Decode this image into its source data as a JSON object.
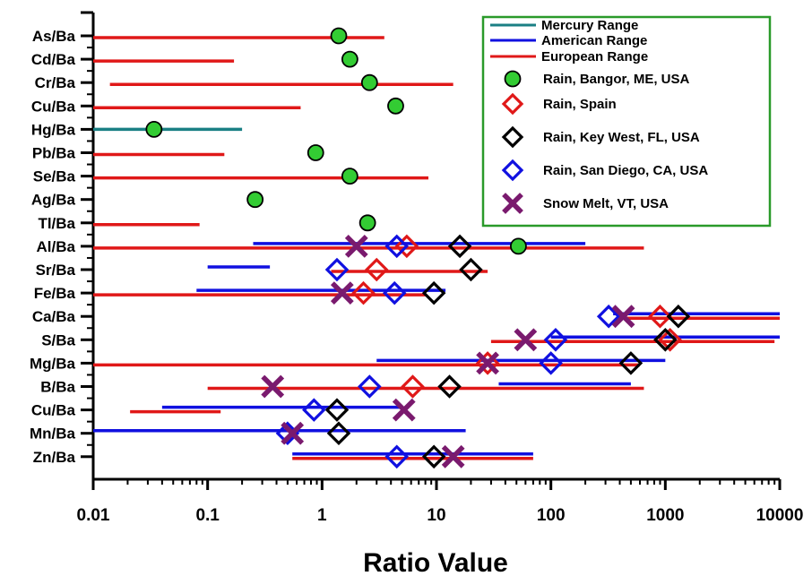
{
  "chart_data": {
    "type": "scatter",
    "xlabel": "Ratio Value",
    "x_scale": "log",
    "xlim": [
      0.01,
      10000
    ],
    "x_ticks": [
      "0.01",
      "0.1",
      "1",
      "10",
      "100",
      "1000",
      "10000"
    ],
    "x_tick_values": [
      0.01,
      0.1,
      1,
      10,
      100,
      1000,
      10000
    ],
    "categories": [
      "As/Ba",
      "Cd/Ba",
      "Cr/Ba",
      "Cu/Ba",
      "Hg/Ba",
      "Pb/Ba",
      "Se/Ba",
      "Ag/Ba",
      "Tl/Ba",
      "Al/Ba",
      "Sr/Ba",
      "Fe/Ba",
      "Ca/Ba",
      "S/Ba",
      "Mg/Ba",
      "B/Ba",
      "Cu/Ba",
      "Mn/Ba",
      "Zn/Ba"
    ],
    "legend_position": "top-right",
    "ranges": [
      {
        "name": "Mercury Range",
        "color": "#1a7f84",
        "segments": [
          {
            "category": 4,
            "x": [
              0.01,
              0.2
            ]
          }
        ]
      },
      {
        "name": "American Range",
        "color": "#1010e0",
        "segments": [
          {
            "category": 9,
            "x": [
              0.25,
              200
            ]
          },
          {
            "category": 10,
            "x": [
              0.1,
              0.35
            ]
          },
          {
            "category": 11,
            "x": [
              0.08,
              12
            ]
          },
          {
            "category": 12,
            "x": [
              350,
              10000
            ]
          },
          {
            "category": 13,
            "x": [
              100,
              10000
            ]
          },
          {
            "category": 14,
            "x": [
              3,
              1000
            ]
          },
          {
            "category": 15,
            "x": [
              35,
              500
            ]
          },
          {
            "category": 16,
            "x": [
              0.04,
              5
            ]
          },
          {
            "category": 17,
            "x": [
              0.01,
              18
            ]
          },
          {
            "category": 18,
            "x": [
              0.55,
              70
            ]
          }
        ]
      },
      {
        "name": "European Range",
        "color": "#e01818",
        "segments": [
          {
            "category": 0,
            "x": [
              0.01,
              3.5
            ]
          },
          {
            "category": 1,
            "x": [
              0.01,
              0.17
            ]
          },
          {
            "category": 2,
            "x": [
              0.014,
              14
            ]
          },
          {
            "category": 3,
            "x": [
              0.01,
              0.65
            ]
          },
          {
            "category": 5,
            "x": [
              0.01,
              0.14
            ]
          },
          {
            "category": 6,
            "x": [
              0.01,
              8.5
            ]
          },
          {
            "category": 8,
            "x": [
              0.01,
              0.085
            ]
          },
          {
            "category": 9,
            "x": [
              0.01,
              650
            ]
          },
          {
            "category": 10,
            "x": [
              1.2,
              28
            ]
          },
          {
            "category": 11,
            "x": [
              0.01,
              8
            ]
          },
          {
            "category": 12,
            "x": [
              400,
              10000
            ]
          },
          {
            "category": 13,
            "x": [
              30,
              9000
            ]
          },
          {
            "category": 14,
            "x": [
              0.01,
              600
            ]
          },
          {
            "category": 15,
            "x": [
              0.1,
              650
            ]
          },
          {
            "category": 16,
            "x": [
              0.021,
              0.13
            ]
          },
          {
            "category": 18,
            "x": [
              0.55,
              70
            ]
          }
        ]
      }
    ],
    "series": [
      {
        "name": "Rain, Bangor, ME, USA",
        "marker": "circle",
        "color": "#33cc33",
        "points": [
          {
            "category": 0,
            "x": 1.4
          },
          {
            "category": 1,
            "x": 1.75
          },
          {
            "category": 2,
            "x": 2.6
          },
          {
            "category": 3,
            "x": 4.4
          },
          {
            "category": 4,
            "x": 0.034
          },
          {
            "category": 5,
            "x": 0.88
          },
          {
            "category": 6,
            "x": 1.75
          },
          {
            "category": 7,
            "x": 0.26
          },
          {
            "category": 8,
            "x": 2.5
          },
          {
            "category": 9,
            "x": 52
          }
        ]
      },
      {
        "name": "Rain, Spain",
        "marker": "diamond",
        "color": "#e01818",
        "points": [
          {
            "category": 9,
            "x": 5.5
          },
          {
            "category": 10,
            "x": 3
          },
          {
            "category": 11,
            "x": 2.3
          },
          {
            "category": 12,
            "x": 900
          },
          {
            "category": 13,
            "x": 1100
          },
          {
            "category": 14,
            "x": 28
          },
          {
            "category": 15,
            "x": 6.2
          }
        ]
      },
      {
        "name": "Rain, Key West, FL, USA",
        "marker": "diamond",
        "color": "#000000",
        "points": [
          {
            "category": 9,
            "x": 16
          },
          {
            "category": 10,
            "x": 20
          },
          {
            "category": 11,
            "x": 9.5
          },
          {
            "category": 12,
            "x": 1300
          },
          {
            "category": 13,
            "x": 1000
          },
          {
            "category": 14,
            "x": 500
          },
          {
            "category": 15,
            "x": 13
          },
          {
            "category": 16,
            "x": 1.35
          },
          {
            "category": 17,
            "x": 1.4
          },
          {
            "category": 18,
            "x": 9.5
          }
        ]
      },
      {
        "name": "Rain, San Diego, CA, USA",
        "marker": "diamond",
        "color": "#1010e0",
        "points": [
          {
            "category": 9,
            "x": 4.5
          },
          {
            "category": 10,
            "x": 1.35
          },
          {
            "category": 11,
            "x": 4.3
          },
          {
            "category": 12,
            "x": 320
          },
          {
            "category": 13,
            "x": 110
          },
          {
            "category": 14,
            "x": 100
          },
          {
            "category": 15,
            "x": 2.6
          },
          {
            "category": 16,
            "x": 0.85
          },
          {
            "category": 17,
            "x": 0.5
          },
          {
            "category": 18,
            "x": 4.5
          }
        ]
      },
      {
        "name": "Snow Melt, VT, USA",
        "marker": "x",
        "color": "#7a1a6e",
        "points": [
          {
            "category": 9,
            "x": 2
          },
          {
            "category": 11,
            "x": 1.5
          },
          {
            "category": 12,
            "x": 430
          },
          {
            "category": 13,
            "x": 60
          },
          {
            "category": 14,
            "x": 28
          },
          {
            "category": 15,
            "x": 0.37
          },
          {
            "category": 16,
            "x": 5.2
          },
          {
            "category": 17,
            "x": 0.55
          },
          {
            "category": 18,
            "x": 14
          }
        ]
      }
    ]
  }
}
